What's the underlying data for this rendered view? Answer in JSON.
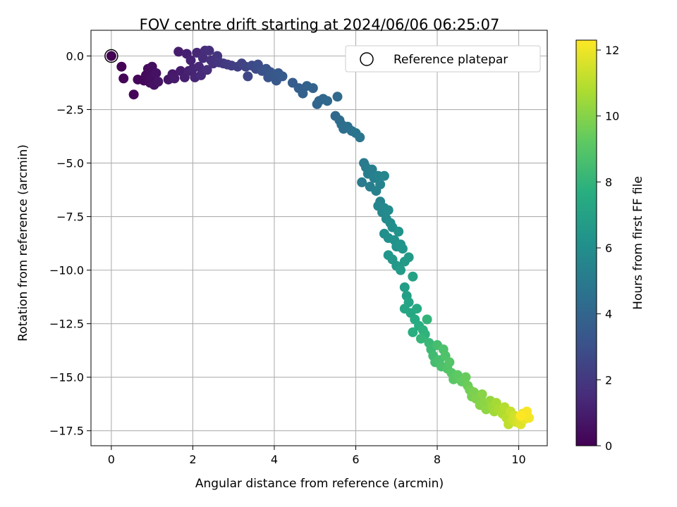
{
  "chart_data": {
    "type": "scatter",
    "title": "FOV centre drift starting at 2024/06/06 06:25:07",
    "xlabel": "Angular distance from reference (arcmin)",
    "ylabel": "Rotation from reference (arcmin)",
    "xlim": [
      -0.5,
      10.7
    ],
    "ylim": [
      -18.2,
      1.2
    ],
    "xticks": [
      0,
      2,
      4,
      6,
      8,
      10
    ],
    "xtick_labels": [
      "0",
      "2",
      "4",
      "6",
      "8",
      "10"
    ],
    "yticks": [
      0,
      -2.5,
      -5,
      -7.5,
      -10,
      -12.5,
      -15,
      -17.5
    ],
    "ytick_labels": [
      "0.0",
      "−2.5",
      "−5.0",
      "−7.5",
      "−10.0",
      "−12.5",
      "−15.0",
      "−17.5"
    ],
    "grid": true,
    "legend": {
      "position": "upper-right",
      "entries": [
        "Reference platepar"
      ]
    },
    "reference_point": {
      "label": "Reference platepar",
      "x": 0,
      "y": 0,
      "marker": "open-circle"
    },
    "colorbar": {
      "label": "Hours from first FF file",
      "range": [
        0,
        12.3
      ],
      "ticks": [
        0,
        2,
        4,
        6,
        8,
        10,
        12
      ],
      "tick_labels": [
        "0",
        "2",
        "4",
        "6",
        "8",
        "10",
        "12"
      ],
      "colormap": "viridis"
    },
    "series": [
      {
        "color_by": "hours",
        "points": [
          {
            "x": 0.0,
            "y": 0.0,
            "h": 0.0
          },
          {
            "x": 0.25,
            "y": -0.5,
            "h": 0.05
          },
          {
            "x": 0.3,
            "y": -1.05,
            "h": 0.1
          },
          {
            "x": 0.55,
            "y": -1.8,
            "h": 0.15
          },
          {
            "x": 0.65,
            "y": -1.1,
            "h": 0.2
          },
          {
            "x": 0.8,
            "y": -1.15,
            "h": 0.25
          },
          {
            "x": 0.85,
            "y": -0.9,
            "h": 0.3
          },
          {
            "x": 0.9,
            "y": -0.6,
            "h": 0.35
          },
          {
            "x": 0.95,
            "y": -1.25,
            "h": 0.4
          },
          {
            "x": 1.0,
            "y": -0.5,
            "h": 0.45
          },
          {
            "x": 1.0,
            "y": -1.0,
            "h": 0.5
          },
          {
            "x": 1.05,
            "y": -1.35,
            "h": 0.55
          },
          {
            "x": 1.1,
            "y": -0.8,
            "h": 0.6
          },
          {
            "x": 1.15,
            "y": -1.2,
            "h": 0.65
          },
          {
            "x": 1.4,
            "y": -1.1,
            "h": 0.75
          },
          {
            "x": 1.5,
            "y": -0.85,
            "h": 0.85
          },
          {
            "x": 1.55,
            "y": -1.05,
            "h": 0.9
          },
          {
            "x": 1.7,
            "y": -0.7,
            "h": 0.95
          },
          {
            "x": 1.65,
            "y": 0.2,
            "h": 1.0
          },
          {
            "x": 1.8,
            "y": -1.0,
            "h": 1.05
          },
          {
            "x": 1.85,
            "y": 0.1,
            "h": 1.1
          },
          {
            "x": 1.9,
            "y": -0.7,
            "h": 1.15
          },
          {
            "x": 1.95,
            "y": -0.2,
            "h": 1.2
          },
          {
            "x": 2.0,
            "y": -0.6,
            "h": 1.25
          },
          {
            "x": 2.05,
            "y": -1.0,
            "h": 1.3
          },
          {
            "x": 2.1,
            "y": 0.15,
            "h": 1.35
          },
          {
            "x": 2.15,
            "y": -0.5,
            "h": 1.4
          },
          {
            "x": 2.2,
            "y": -0.9,
            "h": 1.45
          },
          {
            "x": 2.25,
            "y": -0.1,
            "h": 1.5
          },
          {
            "x": 2.3,
            "y": 0.25,
            "h": 1.55
          },
          {
            "x": 2.35,
            "y": -0.65,
            "h": 1.6
          },
          {
            "x": 2.4,
            "y": 0.25,
            "h": 1.65
          },
          {
            "x": 2.45,
            "y": -0.2,
            "h": 1.7
          },
          {
            "x": 2.5,
            "y": -0.35,
            "h": 1.8
          },
          {
            "x": 2.6,
            "y": 0.0,
            "h": 1.85
          },
          {
            "x": 2.65,
            "y": -0.3,
            "h": 1.9
          },
          {
            "x": 2.75,
            "y": -0.35,
            "h": 2.0
          },
          {
            "x": 2.85,
            "y": -0.4,
            "h": 2.1
          },
          {
            "x": 2.95,
            "y": -0.45,
            "h": 2.2
          },
          {
            "x": 3.1,
            "y": -0.5,
            "h": 2.3
          },
          {
            "x": 3.2,
            "y": -0.35,
            "h": 2.4
          },
          {
            "x": 3.3,
            "y": -0.5,
            "h": 2.5
          },
          {
            "x": 3.35,
            "y": -0.95,
            "h": 2.6
          },
          {
            "x": 3.45,
            "y": -0.45,
            "h": 2.7
          },
          {
            "x": 3.55,
            "y": -0.6,
            "h": 2.8
          },
          {
            "x": 3.6,
            "y": -0.4,
            "h": 2.9
          },
          {
            "x": 3.7,
            "y": -0.7,
            "h": 3.0
          },
          {
            "x": 3.8,
            "y": -0.6,
            "h": 3.1
          },
          {
            "x": 3.85,
            "y": -1.0,
            "h": 3.2
          },
          {
            "x": 3.9,
            "y": -0.75,
            "h": 3.25
          },
          {
            "x": 4.0,
            "y": -0.85,
            "h": 3.3
          },
          {
            "x": 4.05,
            "y": -1.15,
            "h": 3.35
          },
          {
            "x": 4.1,
            "y": -0.8,
            "h": 3.4
          },
          {
            "x": 4.2,
            "y": -0.95,
            "h": 3.5
          },
          {
            "x": 4.45,
            "y": -1.25,
            "h": 3.6
          },
          {
            "x": 4.6,
            "y": -1.5,
            "h": 3.7
          },
          {
            "x": 4.7,
            "y": -1.75,
            "h": 3.8
          },
          {
            "x": 4.8,
            "y": -1.4,
            "h": 3.85
          },
          {
            "x": 4.95,
            "y": -1.5,
            "h": 3.9
          },
          {
            "x": 5.05,
            "y": -2.25,
            "h": 4.0
          },
          {
            "x": 5.1,
            "y": -2.1,
            "h": 4.05
          },
          {
            "x": 5.2,
            "y": -2.0,
            "h": 4.1
          },
          {
            "x": 5.3,
            "y": -2.1,
            "h": 4.15
          },
          {
            "x": 5.5,
            "y": -2.8,
            "h": 4.2
          },
          {
            "x": 5.55,
            "y": -1.9,
            "h": 4.25
          },
          {
            "x": 5.6,
            "y": -3.0,
            "h": 4.3
          },
          {
            "x": 5.65,
            "y": -3.2,
            "h": 4.35
          },
          {
            "x": 5.7,
            "y": -3.4,
            "h": 4.4
          },
          {
            "x": 5.8,
            "y": -3.3,
            "h": 4.5
          },
          {
            "x": 5.9,
            "y": -3.5,
            "h": 4.6
          },
          {
            "x": 6.0,
            "y": -3.6,
            "h": 4.7
          },
          {
            "x": 6.1,
            "y": -3.8,
            "h": 4.8
          },
          {
            "x": 6.2,
            "y": -5.0,
            "h": 5.0
          },
          {
            "x": 6.15,
            "y": -5.9,
            "h": 5.05
          },
          {
            "x": 6.25,
            "y": -5.2,
            "h": 5.1
          },
          {
            "x": 6.3,
            "y": -5.5,
            "h": 5.15
          },
          {
            "x": 6.35,
            "y": -6.1,
            "h": 5.2
          },
          {
            "x": 6.4,
            "y": -5.3,
            "h": 5.25
          },
          {
            "x": 6.45,
            "y": -5.7,
            "h": 5.3
          },
          {
            "x": 6.5,
            "y": -6.3,
            "h": 5.35
          },
          {
            "x": 6.55,
            "y": -5.6,
            "h": 5.4
          },
          {
            "x": 6.6,
            "y": -6.0,
            "h": 5.45
          },
          {
            "x": 6.6,
            "y": -6.8,
            "h": 5.5
          },
          {
            "x": 6.7,
            "y": -5.6,
            "h": 5.55
          },
          {
            "x": 6.55,
            "y": -7.0,
            "h": 5.6
          },
          {
            "x": 6.65,
            "y": -7.3,
            "h": 5.7
          },
          {
            "x": 6.7,
            "y": -7.1,
            "h": 5.75
          },
          {
            "x": 6.75,
            "y": -7.6,
            "h": 5.8
          },
          {
            "x": 6.8,
            "y": -7.2,
            "h": 5.85
          },
          {
            "x": 6.85,
            "y": -7.8,
            "h": 5.9
          },
          {
            "x": 6.9,
            "y": -8.0,
            "h": 6.0
          },
          {
            "x": 6.7,
            "y": -8.3,
            "h": 6.05
          },
          {
            "x": 6.8,
            "y": -8.5,
            "h": 6.1
          },
          {
            "x": 6.95,
            "y": -8.6,
            "h": 6.15
          },
          {
            "x": 7.0,
            "y": -8.9,
            "h": 6.2
          },
          {
            "x": 7.05,
            "y": -8.2,
            "h": 6.25
          },
          {
            "x": 7.1,
            "y": -8.8,
            "h": 6.3
          },
          {
            "x": 7.15,
            "y": -9.0,
            "h": 6.35
          },
          {
            "x": 6.8,
            "y": -9.3,
            "h": 6.4
          },
          {
            "x": 6.9,
            "y": -9.5,
            "h": 6.45
          },
          {
            "x": 7.0,
            "y": -9.8,
            "h": 6.5
          },
          {
            "x": 7.2,
            "y": -9.6,
            "h": 6.6
          },
          {
            "x": 7.3,
            "y": -9.4,
            "h": 6.65
          },
          {
            "x": 7.1,
            "y": -10.0,
            "h": 6.7
          },
          {
            "x": 7.2,
            "y": -10.8,
            "h": 6.8
          },
          {
            "x": 7.25,
            "y": -11.2,
            "h": 6.9
          },
          {
            "x": 7.4,
            "y": -10.3,
            "h": 7.0
          },
          {
            "x": 7.3,
            "y": -11.5,
            "h": 7.1
          },
          {
            "x": 7.2,
            "y": -11.8,
            "h": 7.2
          },
          {
            "x": 7.35,
            "y": -12.0,
            "h": 7.3
          },
          {
            "x": 7.5,
            "y": -11.8,
            "h": 7.4
          },
          {
            "x": 7.45,
            "y": -12.3,
            "h": 7.5
          },
          {
            "x": 7.55,
            "y": -12.6,
            "h": 7.6
          },
          {
            "x": 7.4,
            "y": -12.9,
            "h": 7.7
          },
          {
            "x": 7.65,
            "y": -12.8,
            "h": 7.8
          },
          {
            "x": 7.7,
            "y": -13.0,
            "h": 7.9
          },
          {
            "x": 7.75,
            "y": -12.3,
            "h": 8.0
          },
          {
            "x": 7.6,
            "y": -13.2,
            "h": 8.1
          },
          {
            "x": 7.8,
            "y": -13.4,
            "h": 8.2
          },
          {
            "x": 7.85,
            "y": -13.7,
            "h": 8.3
          },
          {
            "x": 7.9,
            "y": -14.0,
            "h": 8.4
          },
          {
            "x": 7.95,
            "y": -14.3,
            "h": 8.5
          },
          {
            "x": 8.0,
            "y": -13.5,
            "h": 8.55
          },
          {
            "x": 8.05,
            "y": -14.2,
            "h": 8.6
          },
          {
            "x": 8.1,
            "y": -14.5,
            "h": 8.7
          },
          {
            "x": 8.15,
            "y": -13.7,
            "h": 8.75
          },
          {
            "x": 8.2,
            "y": -14.0,
            "h": 8.8
          },
          {
            "x": 8.25,
            "y": -14.6,
            "h": 8.9
          },
          {
            "x": 8.3,
            "y": -14.3,
            "h": 8.95
          },
          {
            "x": 8.35,
            "y": -14.8,
            "h": 9.0
          },
          {
            "x": 8.4,
            "y": -15.1,
            "h": 9.1
          },
          {
            "x": 8.5,
            "y": -14.9,
            "h": 9.2
          },
          {
            "x": 8.6,
            "y": -15.2,
            "h": 9.3
          },
          {
            "x": 8.7,
            "y": -15.0,
            "h": 9.4
          },
          {
            "x": 8.75,
            "y": -15.4,
            "h": 9.5
          },
          {
            "x": 8.8,
            "y": -15.6,
            "h": 9.6
          },
          {
            "x": 8.85,
            "y": -15.9,
            "h": 9.7
          },
          {
            "x": 8.9,
            "y": -15.7,
            "h": 9.8
          },
          {
            "x": 8.95,
            "y": -16.0,
            "h": 9.9
          },
          {
            "x": 9.05,
            "y": -16.3,
            "h": 10.0
          },
          {
            "x": 9.1,
            "y": -15.8,
            "h": 10.05
          },
          {
            "x": 9.15,
            "y": -16.2,
            "h": 10.1
          },
          {
            "x": 9.2,
            "y": -16.5,
            "h": 10.2
          },
          {
            "x": 9.3,
            "y": -16.1,
            "h": 10.3
          },
          {
            "x": 9.35,
            "y": -16.4,
            "h": 10.4
          },
          {
            "x": 9.4,
            "y": -16.6,
            "h": 10.5
          },
          {
            "x": 9.45,
            "y": -16.2,
            "h": 10.6
          },
          {
            "x": 9.5,
            "y": -16.5,
            "h": 10.7
          },
          {
            "x": 9.6,
            "y": -16.7,
            "h": 10.8
          },
          {
            "x": 9.65,
            "y": -16.4,
            "h": 10.9
          },
          {
            "x": 9.7,
            "y": -16.9,
            "h": 11.0
          },
          {
            "x": 9.75,
            "y": -17.2,
            "h": 11.1
          },
          {
            "x": 9.8,
            "y": -16.6,
            "h": 11.2
          },
          {
            "x": 9.85,
            "y": -17.0,
            "h": 11.3
          },
          {
            "x": 9.9,
            "y": -16.8,
            "h": 11.4
          },
          {
            "x": 9.95,
            "y": -17.1,
            "h": 11.5
          },
          {
            "x": 10.0,
            "y": -16.9,
            "h": 11.6
          },
          {
            "x": 10.05,
            "y": -17.2,
            "h": 11.7
          },
          {
            "x": 10.1,
            "y": -16.7,
            "h": 11.8
          },
          {
            "x": 10.15,
            "y": -16.95,
            "h": 11.9
          },
          {
            "x": 10.2,
            "y": -16.8,
            "h": 12.0
          },
          {
            "x": 10.25,
            "y": -16.9,
            "h": 12.1
          },
          {
            "x": 10.2,
            "y": -16.6,
            "h": 12.2
          },
          {
            "x": 10.05,
            "y": -16.8,
            "h": 12.3
          }
        ]
      }
    ]
  }
}
